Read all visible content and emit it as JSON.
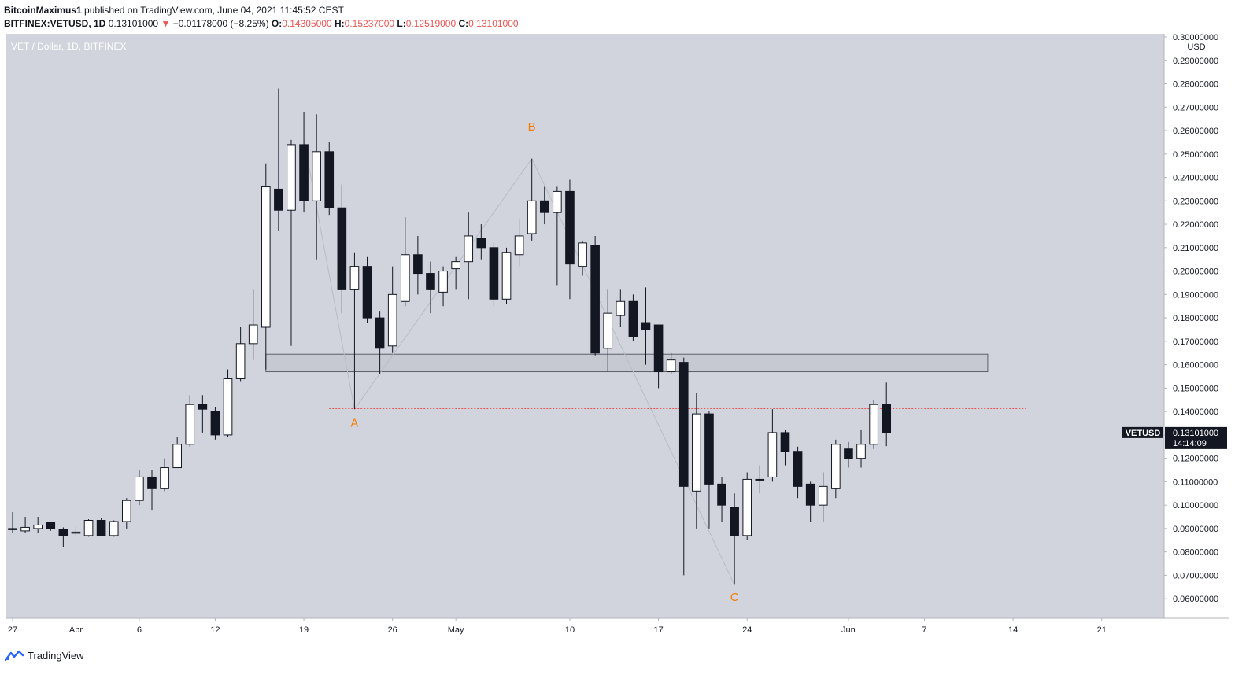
{
  "header": {
    "author": "BitcoinMaximus1",
    "published_text": " published on TradingView.com, June 04, 2021 11:45:52 CEST",
    "symbol_line": "BITFINEX:VETUSD, 1D",
    "last_price": "0.13101000",
    "down_arrow": "▼",
    "change": "−0.01178000 (−8.25%)",
    "o_label": "O:",
    "o_value": "0.14305000",
    "h_label": "H:",
    "h_value": "0.15237000",
    "l_label": "L:",
    "l_value": "0.12519000",
    "c_label": "C:",
    "c_value": "0.13101000"
  },
  "footer": {
    "brand": "TradingView",
    "logo_icon": "tradingview-logo-icon"
  },
  "colors": {
    "background": "#d1d4dc",
    "up_candle": "#ffffff",
    "down_candle": "#131722",
    "wave_label": "#f57c00",
    "support_line": "#ef5350",
    "price_badge": "#131722"
  },
  "chart_data": {
    "type": "candlestick",
    "title": "VET / Dollar, 1D, BITFINEX",
    "price_axis_unit": "USD",
    "ylim": [
      0.052,
      0.3
    ],
    "xlim": [
      "2021-03-27",
      "2021-06-24"
    ],
    "y_ticks": [
      "0.30000000",
      "0.29000000",
      "0.28000000",
      "0.27000000",
      "0.26000000",
      "0.25000000",
      "0.24000000",
      "0.23000000",
      "0.22000000",
      "0.21000000",
      "0.20000000",
      "0.19000000",
      "0.18000000",
      "0.17000000",
      "0.16000000",
      "0.15000000",
      "0.14000000",
      "0.13000000",
      "0.12000000",
      "0.11000000",
      "0.10000000",
      "0.09000000",
      "0.08000000",
      "0.07000000",
      "0.06000000"
    ],
    "x_ticks": [
      {
        "label": "27",
        "date": "2021-03-27"
      },
      {
        "label": "Apr",
        "date": "2021-04-01"
      },
      {
        "label": "6",
        "date": "2021-04-06"
      },
      {
        "label": "12",
        "date": "2021-04-12"
      },
      {
        "label": "19",
        "date": "2021-04-19"
      },
      {
        "label": "26",
        "date": "2021-04-26"
      },
      {
        "label": "May",
        "date": "2021-05-01"
      },
      {
        "label": "10",
        "date": "2021-05-10"
      },
      {
        "label": "17",
        "date": "2021-05-17"
      },
      {
        "label": "24",
        "date": "2021-05-24"
      },
      {
        "label": "Jun",
        "date": "2021-06-01"
      },
      {
        "label": "7",
        "date": "2021-06-07"
      },
      {
        "label": "14",
        "date": "2021-06-14"
      },
      {
        "label": "21",
        "date": "2021-06-21"
      }
    ],
    "candles": [
      {
        "date": "2021-03-27",
        "o": 0.0895,
        "h": 0.097,
        "l": 0.088,
        "c": 0.09
      },
      {
        "date": "2021-03-28",
        "o": 0.089,
        "h": 0.095,
        "l": 0.088,
        "c": 0.0905
      },
      {
        "date": "2021-03-29",
        "o": 0.09,
        "h": 0.095,
        "l": 0.088,
        "c": 0.0915
      },
      {
        "date": "2021-03-30",
        "o": 0.0925,
        "h": 0.093,
        "l": 0.089,
        "c": 0.09
      },
      {
        "date": "2021-03-31",
        "o": 0.0895,
        "h": 0.0905,
        "l": 0.082,
        "c": 0.087
      },
      {
        "date": "2021-04-01",
        "o": 0.088,
        "h": 0.091,
        "l": 0.087,
        "c": 0.0885
      },
      {
        "date": "2021-04-02",
        "o": 0.087,
        "h": 0.094,
        "l": 0.0865,
        "c": 0.0935
      },
      {
        "date": "2021-04-03",
        "o": 0.0935,
        "h": 0.0945,
        "l": 0.087,
        "c": 0.087
      },
      {
        "date": "2021-04-04",
        "o": 0.087,
        "h": 0.0935,
        "l": 0.0865,
        "c": 0.093
      },
      {
        "date": "2021-04-05",
        "o": 0.093,
        "h": 0.103,
        "l": 0.09,
        "c": 0.102
      },
      {
        "date": "2021-04-06",
        "o": 0.102,
        "h": 0.115,
        "l": 0.1,
        "c": 0.112
      },
      {
        "date": "2021-04-07",
        "o": 0.112,
        "h": 0.115,
        "l": 0.098,
        "c": 0.107
      },
      {
        "date": "2021-04-08",
        "o": 0.107,
        "h": 0.12,
        "l": 0.106,
        "c": 0.116
      },
      {
        "date": "2021-04-09",
        "o": 0.116,
        "h": 0.129,
        "l": 0.116,
        "c": 0.126
      },
      {
        "date": "2021-04-10",
        "o": 0.126,
        "h": 0.147,
        "l": 0.125,
        "c": 0.143
      },
      {
        "date": "2021-04-11",
        "o": 0.143,
        "h": 0.147,
        "l": 0.131,
        "c": 0.141
      },
      {
        "date": "2021-04-12",
        "o": 0.14,
        "h": 0.142,
        "l": 0.128,
        "c": 0.13
      },
      {
        "date": "2021-04-13",
        "o": 0.13,
        "h": 0.158,
        "l": 0.129,
        "c": 0.154
      },
      {
        "date": "2021-04-14",
        "o": 0.154,
        "h": 0.176,
        "l": 0.153,
        "c": 0.169
      },
      {
        "date": "2021-04-15",
        "o": 0.169,
        "h": 0.192,
        "l": 0.162,
        "c": 0.177
      },
      {
        "date": "2021-04-16",
        "o": 0.176,
        "h": 0.246,
        "l": 0.158,
        "c": 0.236
      },
      {
        "date": "2021-04-17",
        "o": 0.235,
        "h": 0.278,
        "l": 0.217,
        "c": 0.226
      },
      {
        "date": "2021-04-18",
        "o": 0.226,
        "h": 0.256,
        "l": 0.168,
        "c": 0.254
      },
      {
        "date": "2021-04-19",
        "o": 0.254,
        "h": 0.268,
        "l": 0.225,
        "c": 0.23
      },
      {
        "date": "2021-04-20",
        "o": 0.23,
        "h": 0.267,
        "l": 0.205,
        "c": 0.251
      },
      {
        "date": "2021-04-21",
        "o": 0.251,
        "h": 0.255,
        "l": 0.224,
        "c": 0.227
      },
      {
        "date": "2021-04-22",
        "o": 0.227,
        "h": 0.237,
        "l": 0.182,
        "c": 0.192
      },
      {
        "date": "2021-04-23",
        "o": 0.192,
        "h": 0.208,
        "l": 0.141,
        "c": 0.202
      },
      {
        "date": "2021-04-24",
        "o": 0.202,
        "h": 0.206,
        "l": 0.178,
        "c": 0.18
      },
      {
        "date": "2021-04-25",
        "o": 0.18,
        "h": 0.183,
        "l": 0.156,
        "c": 0.167
      },
      {
        "date": "2021-04-26",
        "o": 0.168,
        "h": 0.202,
        "l": 0.165,
        "c": 0.19
      },
      {
        "date": "2021-04-27",
        "o": 0.187,
        "h": 0.223,
        "l": 0.185,
        "c": 0.207
      },
      {
        "date": "2021-04-28",
        "o": 0.207,
        "h": 0.215,
        "l": 0.19,
        "c": 0.199
      },
      {
        "date": "2021-04-29",
        "o": 0.199,
        "h": 0.204,
        "l": 0.182,
        "c": 0.192
      },
      {
        "date": "2021-04-30",
        "o": 0.191,
        "h": 0.202,
        "l": 0.185,
        "c": 0.2
      },
      {
        "date": "2021-05-01",
        "o": 0.201,
        "h": 0.206,
        "l": 0.192,
        "c": 0.204
      },
      {
        "date": "2021-05-02",
        "o": 0.204,
        "h": 0.225,
        "l": 0.188,
        "c": 0.215
      },
      {
        "date": "2021-05-03",
        "o": 0.214,
        "h": 0.22,
        "l": 0.205,
        "c": 0.21
      },
      {
        "date": "2021-05-04",
        "o": 0.21,
        "h": 0.212,
        "l": 0.185,
        "c": 0.188
      },
      {
        "date": "2021-05-05",
        "o": 0.188,
        "h": 0.21,
        "l": 0.186,
        "c": 0.208
      },
      {
        "date": "2021-05-06",
        "o": 0.207,
        "h": 0.222,
        "l": 0.202,
        "c": 0.215
      },
      {
        "date": "2021-05-07",
        "o": 0.216,
        "h": 0.248,
        "l": 0.213,
        "c": 0.23
      },
      {
        "date": "2021-05-08",
        "o": 0.23,
        "h": 0.236,
        "l": 0.22,
        "c": 0.225
      },
      {
        "date": "2021-05-09",
        "o": 0.225,
        "h": 0.236,
        "l": 0.194,
        "c": 0.234
      },
      {
        "date": "2021-05-10",
        "o": 0.234,
        "h": 0.239,
        "l": 0.188,
        "c": 0.203
      },
      {
        "date": "2021-05-11",
        "o": 0.202,
        "h": 0.213,
        "l": 0.198,
        "c": 0.212
      },
      {
        "date": "2021-05-12",
        "o": 0.211,
        "h": 0.215,
        "l": 0.164,
        "c": 0.165
      },
      {
        "date": "2021-05-13",
        "o": 0.167,
        "h": 0.192,
        "l": 0.157,
        "c": 0.182
      },
      {
        "date": "2021-05-14",
        "o": 0.181,
        "h": 0.192,
        "l": 0.176,
        "c": 0.187
      },
      {
        "date": "2021-05-15",
        "o": 0.187,
        "h": 0.19,
        "l": 0.17,
        "c": 0.172
      },
      {
        "date": "2021-05-16",
        "o": 0.178,
        "h": 0.193,
        "l": 0.16,
        "c": 0.175
      },
      {
        "date": "2021-05-17",
        "o": 0.177,
        "h": 0.177,
        "l": 0.15,
        "c": 0.157
      },
      {
        "date": "2021-05-18",
        "o": 0.157,
        "h": 0.165,
        "l": 0.156,
        "c": 0.162
      },
      {
        "date": "2021-05-19",
        "o": 0.161,
        "h": 0.163,
        "l": 0.07,
        "c": 0.108
      },
      {
        "date": "2021-05-20",
        "o": 0.106,
        "h": 0.148,
        "l": 0.09,
        "c": 0.139
      },
      {
        "date": "2021-05-21",
        "o": 0.139,
        "h": 0.14,
        "l": 0.09,
        "c": 0.109
      },
      {
        "date": "2021-05-22",
        "o": 0.109,
        "h": 0.112,
        "l": 0.093,
        "c": 0.1
      },
      {
        "date": "2021-05-23",
        "o": 0.099,
        "h": 0.105,
        "l": 0.066,
        "c": 0.087
      },
      {
        "date": "2021-05-24",
        "o": 0.087,
        "h": 0.114,
        "l": 0.085,
        "c": 0.111
      },
      {
        "date": "2021-05-25",
        "o": 0.111,
        "h": 0.117,
        "l": 0.105,
        "c": 0.111
      },
      {
        "date": "2021-05-26",
        "o": 0.112,
        "h": 0.141,
        "l": 0.11,
        "c": 0.131
      },
      {
        "date": "2021-05-27",
        "o": 0.131,
        "h": 0.132,
        "l": 0.117,
        "c": 0.123
      },
      {
        "date": "2021-05-28",
        "o": 0.123,
        "h": 0.125,
        "l": 0.103,
        "c": 0.108
      },
      {
        "date": "2021-05-29",
        "o": 0.109,
        "h": 0.11,
        "l": 0.093,
        "c": 0.1
      },
      {
        "date": "2021-05-30",
        "o": 0.1,
        "h": 0.114,
        "l": 0.093,
        "c": 0.108
      },
      {
        "date": "2021-05-31",
        "o": 0.107,
        "h": 0.128,
        "l": 0.103,
        "c": 0.126
      },
      {
        "date": "2021-06-01",
        "o": 0.124,
        "h": 0.127,
        "l": 0.116,
        "c": 0.12
      },
      {
        "date": "2021-06-02",
        "o": 0.12,
        "h": 0.132,
        "l": 0.116,
        "c": 0.126
      },
      {
        "date": "2021-06-03",
        "o": 0.126,
        "h": 0.145,
        "l": 0.124,
        "c": 0.143
      },
      {
        "date": "2021-06-04",
        "o": 0.14305,
        "h": 0.15237,
        "l": 0.12519,
        "c": 0.13101
      }
    ],
    "annotations": {
      "wave_labels": [
        {
          "label": "A",
          "date": "2021-04-23",
          "price": 0.1335
        },
        {
          "label": "B",
          "date": "2021-05-07",
          "price": 0.26
        },
        {
          "label": "C",
          "date": "2021-05-23",
          "price": 0.059
        }
      ],
      "wave_path": [
        {
          "date": "2021-04-19",
          "price": 0.256
        },
        {
          "date": "2021-04-23",
          "price": 0.141
        },
        {
          "date": "2021-05-07",
          "price": 0.248
        },
        {
          "date": "2021-05-23",
          "price": 0.066
        }
      ],
      "support_zone": {
        "from_date": "2021-04-16",
        "to_date": "2021-06-12",
        "low": 0.157,
        "high": 0.1645
      },
      "horizontal_line": {
        "from_date": "2021-04-21",
        "to_date": "2021-06-15",
        "price": 0.1412
      },
      "current_price_label": {
        "symbol": "VETUSD",
        "price": "0.13101000",
        "countdown": "14:14:09",
        "value": 0.13101
      }
    }
  }
}
